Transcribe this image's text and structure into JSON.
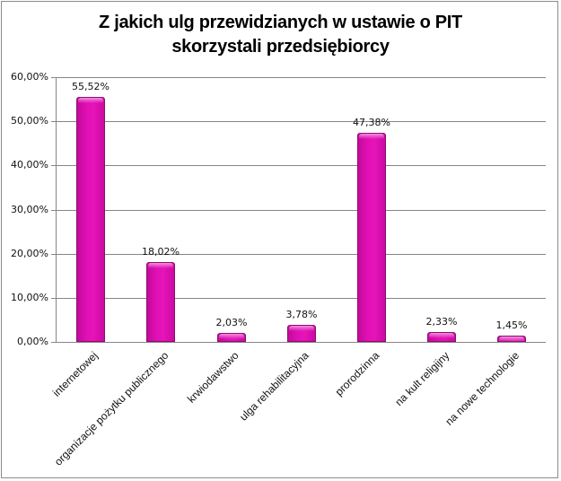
{
  "chart_data": {
    "type": "bar",
    "title": "Z jakich ulg przewidzianych w ustawie o PIT skorzystali przedsiębiorcy",
    "title_lines": [
      "Z jakich ulg przewidzianych w ustawie o PIT",
      "skorzystali przedsiębiorcy"
    ],
    "categories": [
      "internetowej",
      "organizacje pożytku publicznego",
      "krwiodawstwo",
      "ulga rehabilitacyjna",
      "prorodzinna",
      "na kult religijny",
      "na nowe technologie"
    ],
    "values": [
      55.52,
      18.02,
      2.03,
      3.78,
      47.38,
      2.33,
      1.45
    ],
    "value_labels": [
      "55,52%",
      "18,02%",
      "2,03%",
      "3,78%",
      "47,38%",
      "2,33%",
      "1,45%"
    ],
    "xlabel": "",
    "ylabel": "",
    "ylim": [
      0,
      60
    ],
    "yticks": [
      0,
      10,
      20,
      30,
      40,
      50,
      60
    ],
    "ytick_labels": [
      "0,00%",
      "10,00%",
      "20,00%",
      "30,00%",
      "40,00%",
      "50,00%",
      "60,00%"
    ],
    "grid": true,
    "legend": "none",
    "bar_color": "#e010b4"
  }
}
